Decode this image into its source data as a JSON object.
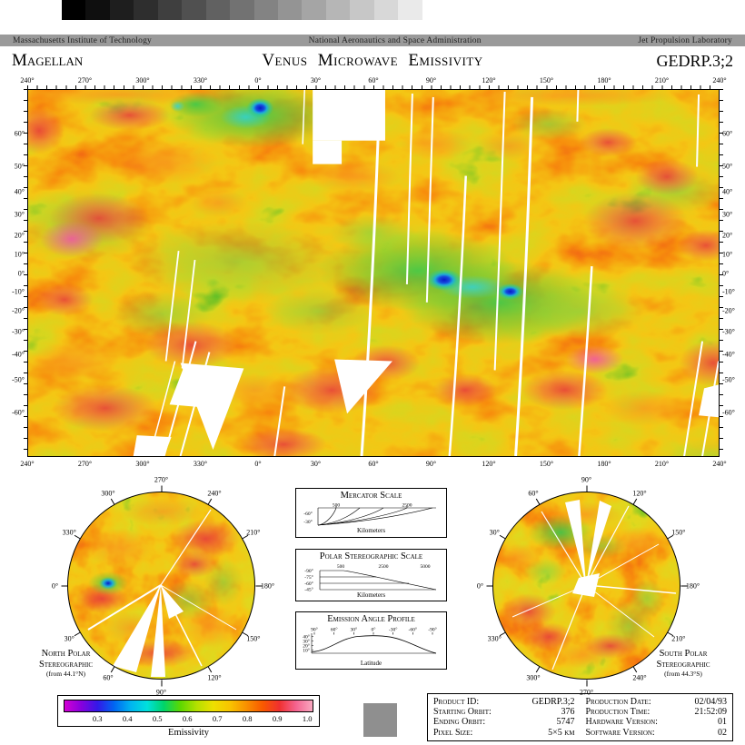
{
  "calibration": {
    "gray_steps": [
      "#000000",
      "#0f0f0f",
      "#1e1e1e",
      "#2e2e2e",
      "#3f3f3f",
      "#505050",
      "#616161",
      "#727272",
      "#838383",
      "#949494",
      "#a5a5a5",
      "#b6b6b6",
      "#c7c7c7",
      "#d8d8d8",
      "#eaeaea",
      "#ffffff"
    ]
  },
  "org_bar": {
    "left": "Massachusetts Institute of Technology",
    "center": "National Aeronautics and Space Administration",
    "right": "Jet Propulsion Laboratory",
    "bg": "#9a9a9a"
  },
  "title_bar": {
    "mission": "Magellan",
    "title": "Venus Microwave Emissivity",
    "product_id": "GEDRP.3;2"
  },
  "mercator": {
    "lon_labels": [
      "240°",
      "270°",
      "300°",
      "330°",
      "0°",
      "30°",
      "60°",
      "90°",
      "120°",
      "150°",
      "180°",
      "210°",
      "240°"
    ],
    "lat_labels": [
      "60°",
      "50°",
      "40°",
      "30°",
      "20°",
      "10°",
      "0°",
      "-10°",
      "-20°",
      "-30°",
      "-40°",
      "-50°",
      "-60°"
    ],
    "max_lat_deg": 70
  },
  "north_polar": {
    "title": "North Polar Stereographic",
    "subtitle": "(from 44.1°N)",
    "labels_clockwise_from_top": [
      "270°",
      "240°",
      "210°",
      "180°",
      "150°",
      "120°",
      "90°",
      "60°",
      "30°",
      "0°",
      "330°",
      "300°"
    ]
  },
  "south_polar": {
    "title": "South Polar Stereographic",
    "subtitle": "(from 44.3°S)",
    "labels_clockwise_from_top": [
      "90°",
      "120°",
      "150°",
      "180°",
      "210°",
      "240°",
      "270°",
      "300°",
      "330°",
      "0°",
      "30°",
      "60°"
    ]
  },
  "scales": {
    "mercator_scale": {
      "title": "Mercator Scale",
      "top_ticks": [
        "500",
        "2500"
      ],
      "lat_ticks": [
        "-60°",
        "-30°"
      ],
      "unit": "Kilometers"
    },
    "polar_scale": {
      "title": "Polar Stereographic Scale",
      "top_ticks": [
        "500",
        "2500",
        "5000"
      ],
      "lat_ticks": [
        "-90°",
        "-75°",
        "-60°",
        "-45°"
      ],
      "unit": "Kilometers"
    },
    "emission_profile": {
      "title": "Emission Angle Profile",
      "x_ticks": [
        "90°",
        "60°",
        "30°",
        "0°",
        "-30°",
        "-60°",
        "-90°"
      ],
      "y_ticks": [
        "40°",
        "30°",
        "20°",
        "10°"
      ],
      "xlabel": "Latitude"
    }
  },
  "colorbar": {
    "ticks": [
      "0.3",
      "0.4",
      "0.5",
      "0.6",
      "0.7",
      "0.8",
      "0.9",
      "1.0"
    ],
    "label": "Emissivity",
    "stops": [
      "#d400d4",
      "#8800dd",
      "#3318e8",
      "#0066f2",
      "#00b4f0",
      "#00e0dc",
      "#00d46a",
      "#5cd800",
      "#b4e000",
      "#eee000",
      "#f8c400",
      "#f89000",
      "#f85800",
      "#f03030",
      "#f56490",
      "#f9a8c0"
    ]
  },
  "product_info": {
    "left": [
      {
        "label": "Product ID:",
        "value": "GEDRP.3;2"
      },
      {
        "label": "Starting Orbit:",
        "value": "376"
      },
      {
        "label": "Ending Orbit:",
        "value": "5747"
      },
      {
        "label": "Pixel Size:",
        "value": "5×5 km"
      }
    ],
    "right": [
      {
        "label": "Production Date:",
        "value": "02/04/93"
      },
      {
        "label": "Production Time:",
        "value": "21:52:09"
      },
      {
        "label": "Hardware Version:",
        "value": "01"
      },
      {
        "label": "Software Version:",
        "value": "02"
      }
    ]
  }
}
